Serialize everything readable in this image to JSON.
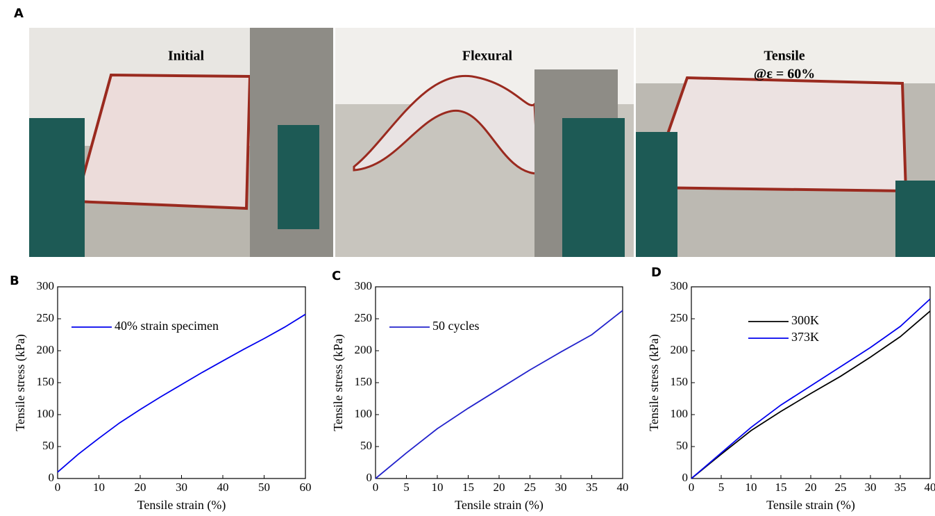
{
  "figure": {
    "panels": [
      "A",
      "B",
      "C",
      "D"
    ],
    "photos": [
      {
        "labels": [
          "Initial"
        ]
      },
      {
        "labels": [
          "Flexural"
        ]
      },
      {
        "labels": [
          "Tensile",
          "@ε = 60%"
        ]
      }
    ]
  },
  "chart_data": [
    {
      "type": "line",
      "xlabel": "Tensile strain (%)",
      "ylabel": "Tensile stress (kPa)",
      "x": [
        0,
        5,
        10,
        15,
        20,
        25,
        30,
        35,
        40,
        45,
        50,
        55,
        60
      ],
      "series": [
        {
          "name": "40% strain specimen",
          "color": "#0000ee",
          "values": [
            10,
            38,
            63,
            87,
            108,
            128,
            147,
            166,
            184,
            202,
            219,
            237,
            257
          ]
        }
      ],
      "xlim": [
        0,
        60
      ],
      "xticks": [
        0,
        10,
        20,
        30,
        40,
        50,
        60
      ],
      "ylim": [
        0,
        300
      ],
      "yticks": [
        0,
        50,
        100,
        150,
        200,
        250,
        300
      ],
      "legend": "upper left"
    },
    {
      "type": "line",
      "xlabel": "Tensile strain (%)",
      "ylabel": "Tensile stress (kPa)",
      "x": [
        0,
        5,
        10,
        15,
        20,
        25,
        30,
        35,
        40
      ],
      "series": [
        {
          "name": "50 cycles",
          "color": "#2222cc",
          "values": [
            0,
            40,
            78,
            110,
            140,
            170,
            198,
            225,
            263
          ]
        }
      ],
      "xlim": [
        0,
        40
      ],
      "xticks": [
        0,
        5,
        10,
        15,
        20,
        25,
        30,
        35,
        40
      ],
      "ylim": [
        0,
        300
      ],
      "yticks": [
        0,
        50,
        100,
        150,
        200,
        250,
        300
      ],
      "legend": "upper left"
    },
    {
      "type": "line",
      "xlabel": "Tensile strain (%)",
      "ylabel": "Tensile stress (kPa)",
      "x": [
        0,
        5,
        10,
        15,
        20,
        25,
        30,
        35,
        40
      ],
      "series": [
        {
          "name": "300K",
          "color": "#000000",
          "values": [
            0,
            38,
            75,
            105,
            133,
            160,
            190,
            222,
            262
          ]
        },
        {
          "name": "373K",
          "color": "#0000ee",
          "values": [
            0,
            40,
            80,
            115,
            145,
            175,
            205,
            238,
            281
          ]
        }
      ],
      "xlim": [
        0,
        40
      ],
      "xticks": [
        0,
        5,
        10,
        15,
        20,
        25,
        30,
        35,
        40
      ],
      "ylim": [
        0,
        300
      ],
      "yticks": [
        0,
        50,
        100,
        150,
        200,
        250,
        300
      ],
      "legend": "upper center"
    }
  ]
}
